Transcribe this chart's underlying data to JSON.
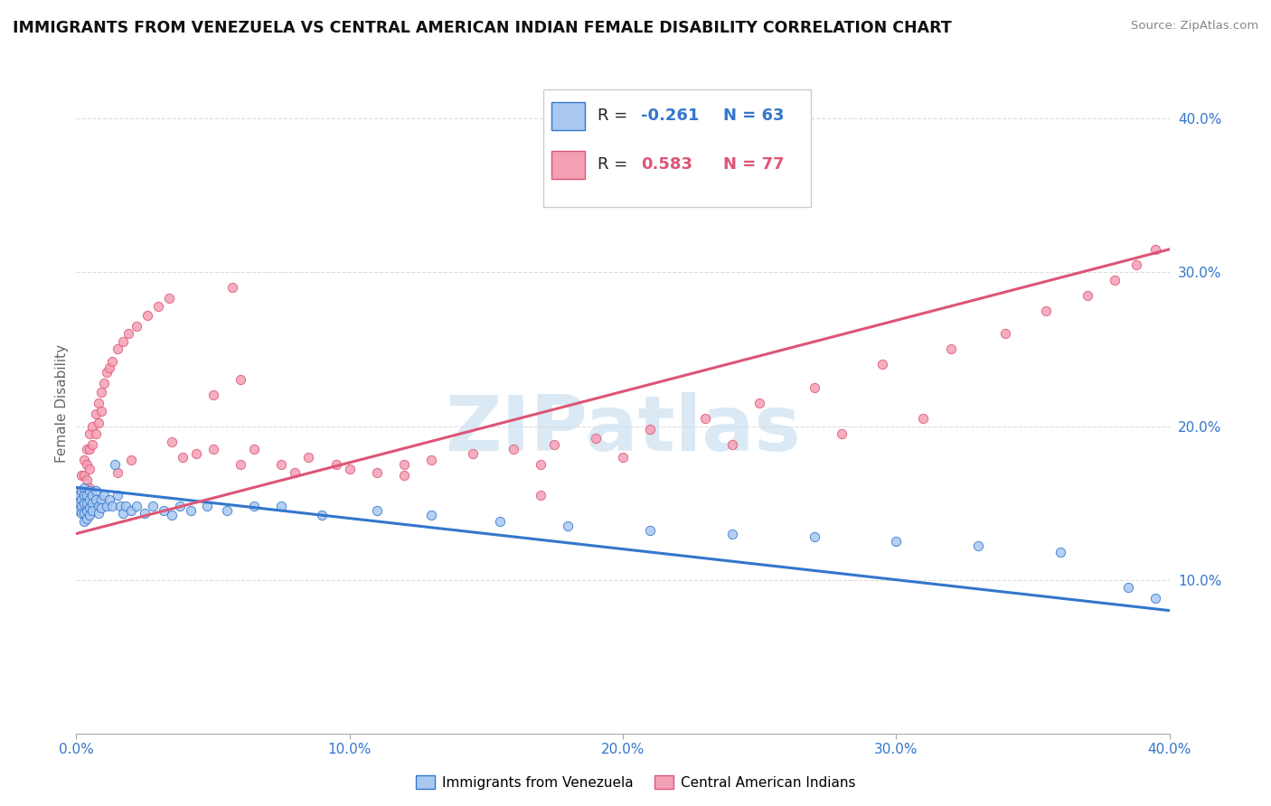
{
  "title": "IMMIGRANTS FROM VENEZUELA VS CENTRAL AMERICAN INDIAN FEMALE DISABILITY CORRELATION CHART",
  "source": "Source: ZipAtlas.com",
  "ylabel": "Female Disability",
  "xlim": [
    0.0,
    0.4
  ],
  "ylim": [
    0.0,
    0.43
  ],
  "xtick_labels": [
    "0.0%",
    "10.0%",
    "20.0%",
    "30.0%",
    "40.0%"
  ],
  "xtick_vals": [
    0.0,
    0.1,
    0.2,
    0.3,
    0.4
  ],
  "ytick_labels": [
    "10.0%",
    "20.0%",
    "30.0%",
    "40.0%"
  ],
  "ytick_vals": [
    0.1,
    0.2,
    0.3,
    0.4
  ],
  "color_blue": "#a8c8f0",
  "color_pink": "#f4a0b4",
  "color_blue_line": "#3377cc",
  "color_pink_line": "#dd5577",
  "watermark_color": "#cce0f0",
  "grid_color": "#dddddd",
  "venezuela_trend_x": [
    0.0,
    0.4
  ],
  "venezuela_trend_y": [
    0.16,
    0.08
  ],
  "central_trend_x": [
    0.0,
    0.4
  ],
  "central_trend_y": [
    0.13,
    0.315
  ],
  "venezuela_x": [
    0.001,
    0.001,
    0.001,
    0.002,
    0.002,
    0.002,
    0.002,
    0.003,
    0.003,
    0.003,
    0.003,
    0.003,
    0.004,
    0.004,
    0.004,
    0.004,
    0.005,
    0.005,
    0.005,
    0.005,
    0.006,
    0.006,
    0.006,
    0.007,
    0.007,
    0.008,
    0.008,
    0.009,
    0.009,
    0.01,
    0.011,
    0.012,
    0.013,
    0.014,
    0.015,
    0.016,
    0.017,
    0.018,
    0.02,
    0.022,
    0.025,
    0.028,
    0.032,
    0.035,
    0.038,
    0.042,
    0.048,
    0.055,
    0.065,
    0.075,
    0.09,
    0.11,
    0.13,
    0.155,
    0.18,
    0.21,
    0.24,
    0.27,
    0.3,
    0.33,
    0.36,
    0.385,
    0.395
  ],
  "venezuela_y": [
    0.155,
    0.15,
    0.145,
    0.158,
    0.152,
    0.148,
    0.143,
    0.16,
    0.155,
    0.15,
    0.143,
    0.138,
    0.155,
    0.15,
    0.145,
    0.14,
    0.158,
    0.152,
    0.147,
    0.142,
    0.155,
    0.15,
    0.145,
    0.158,
    0.152,
    0.148,
    0.143,
    0.152,
    0.147,
    0.155,
    0.148,
    0.152,
    0.148,
    0.175,
    0.155,
    0.148,
    0.143,
    0.148,
    0.145,
    0.148,
    0.143,
    0.148,
    0.145,
    0.142,
    0.148,
    0.145,
    0.148,
    0.145,
    0.148,
    0.148,
    0.142,
    0.145,
    0.142,
    0.138,
    0.135,
    0.132,
    0.13,
    0.128,
    0.125,
    0.122,
    0.118,
    0.095,
    0.088
  ],
  "central_x": [
    0.001,
    0.001,
    0.002,
    0.002,
    0.002,
    0.003,
    0.003,
    0.003,
    0.003,
    0.004,
    0.004,
    0.004,
    0.005,
    0.005,
    0.005,
    0.005,
    0.006,
    0.006,
    0.007,
    0.007,
    0.008,
    0.008,
    0.009,
    0.009,
    0.01,
    0.011,
    0.012,
    0.013,
    0.015,
    0.017,
    0.019,
    0.022,
    0.026,
    0.03,
    0.034,
    0.039,
    0.044,
    0.05,
    0.057,
    0.065,
    0.075,
    0.085,
    0.095,
    0.11,
    0.12,
    0.13,
    0.145,
    0.16,
    0.175,
    0.19,
    0.21,
    0.23,
    0.25,
    0.27,
    0.295,
    0.32,
    0.34,
    0.355,
    0.37,
    0.38,
    0.388,
    0.395,
    0.06,
    0.08,
    0.1,
    0.12,
    0.17,
    0.2,
    0.24,
    0.28,
    0.31,
    0.17,
    0.06,
    0.05,
    0.035,
    0.02,
    0.015
  ],
  "central_y": [
    0.155,
    0.148,
    0.168,
    0.158,
    0.145,
    0.178,
    0.168,
    0.158,
    0.148,
    0.185,
    0.175,
    0.165,
    0.195,
    0.185,
    0.172,
    0.16,
    0.2,
    0.188,
    0.208,
    0.195,
    0.215,
    0.202,
    0.222,
    0.21,
    0.228,
    0.235,
    0.238,
    0.242,
    0.25,
    0.255,
    0.26,
    0.265,
    0.272,
    0.278,
    0.283,
    0.18,
    0.182,
    0.185,
    0.29,
    0.185,
    0.175,
    0.18,
    0.175,
    0.17,
    0.175,
    0.178,
    0.182,
    0.185,
    0.188,
    0.192,
    0.198,
    0.205,
    0.215,
    0.225,
    0.24,
    0.25,
    0.26,
    0.275,
    0.285,
    0.295,
    0.305,
    0.315,
    0.175,
    0.17,
    0.172,
    0.168,
    0.175,
    0.18,
    0.188,
    0.195,
    0.205,
    0.155,
    0.23,
    0.22,
    0.19,
    0.178,
    0.17
  ]
}
